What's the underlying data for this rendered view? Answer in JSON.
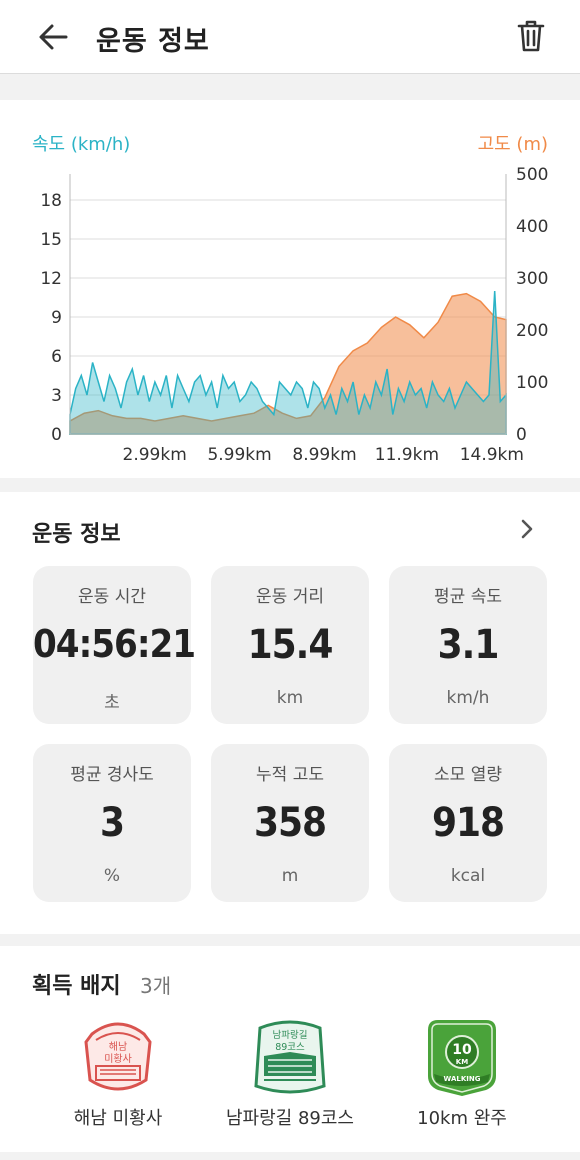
{
  "header": {
    "title": "운동 정보",
    "back_icon": "arrow-left-icon",
    "delete_icon": "trash-icon"
  },
  "chart": {
    "speed_axis_title": "속도 (km/h)",
    "elevation_axis_title": "고도 (m)",
    "colors": {
      "speed": "#2bb3c6",
      "elevation": "#f08a48"
    }
  },
  "chart_data": {
    "type": "area",
    "xlabel": "",
    "x_tick_labels": [
      "2.99km",
      "5.99km",
      "8.99km",
      "11.9km",
      "14.9km"
    ],
    "x_ticks_km": [
      2.99,
      5.99,
      8.99,
      11.9,
      14.9
    ],
    "x_range_km": [
      0,
      15.4
    ],
    "left_axis": {
      "label": "속도 (km/h)",
      "ticks": [
        0,
        3,
        6,
        9,
        12,
        15,
        18
      ],
      "range": [
        0,
        20
      ]
    },
    "right_axis": {
      "label": "고도 (m)",
      "ticks": [
        0,
        100,
        200,
        300,
        400,
        500
      ],
      "range": [
        0,
        500
      ]
    },
    "series": [
      {
        "name": "속도 (km/h)",
        "axis": "left",
        "x_km": [
          0,
          0.2,
          0.4,
          0.6,
          0.8,
          1.0,
          1.2,
          1.4,
          1.6,
          1.8,
          2.0,
          2.2,
          2.4,
          2.6,
          2.8,
          3.0,
          3.2,
          3.4,
          3.6,
          3.8,
          4.0,
          4.2,
          4.4,
          4.6,
          4.8,
          5.0,
          5.2,
          5.4,
          5.6,
          5.8,
          6.0,
          6.2,
          6.4,
          6.6,
          6.8,
          7.0,
          7.2,
          7.4,
          7.6,
          7.8,
          8.0,
          8.2,
          8.4,
          8.6,
          8.8,
          9.0,
          9.2,
          9.4,
          9.6,
          9.8,
          10.0,
          10.2,
          10.4,
          10.6,
          10.8,
          11.0,
          11.2,
          11.4,
          11.6,
          11.8,
          12.0,
          12.2,
          12.4,
          12.6,
          12.8,
          13.0,
          13.2,
          13.4,
          13.6,
          13.8,
          14.0,
          14.2,
          14.4,
          14.6,
          14.8,
          15.0,
          15.2,
          15.4
        ],
        "values": [
          1.5,
          3.5,
          4.5,
          3,
          5.5,
          4,
          2.5,
          4.5,
          3.5,
          2,
          4,
          5,
          3,
          4.5,
          2.5,
          4,
          3,
          4.5,
          2,
          4.5,
          3.5,
          2.5,
          4,
          4.5,
          3,
          4,
          2,
          4.5,
          3.5,
          4,
          2.5,
          3,
          4,
          3.5,
          2.5,
          2,
          1.5,
          4,
          3.5,
          3,
          4,
          3.5,
          2,
          4,
          3.5,
          2,
          3,
          1.5,
          3.5,
          2.5,
          4,
          1.5,
          3,
          2,
          4,
          3,
          5,
          1.5,
          3.5,
          2.5,
          4,
          3,
          3.5,
          2,
          4,
          3,
          2.5,
          3.5,
          2,
          3,
          4,
          3.5,
          3,
          2.5,
          3,
          11,
          2.5,
          3
        ]
      },
      {
        "name": "고도 (m)",
        "axis": "right",
        "x_km": [
          0,
          0.5,
          1,
          1.5,
          2,
          2.5,
          3,
          3.5,
          4,
          4.5,
          5,
          5.5,
          6,
          6.5,
          7,
          7.5,
          8,
          8.5,
          9,
          9.5,
          10,
          10.5,
          11,
          11.5,
          12,
          12.5,
          13,
          13.5,
          14,
          14.5,
          15,
          15.4
        ],
        "values": [
          25,
          40,
          45,
          35,
          30,
          30,
          25,
          30,
          35,
          30,
          25,
          30,
          35,
          40,
          55,
          40,
          30,
          35,
          70,
          130,
          160,
          175,
          205,
          225,
          210,
          185,
          215,
          265,
          270,
          255,
          225,
          220
        ]
      }
    ],
    "grid": true
  },
  "stats": {
    "section_title": "운동 정보",
    "more_icon": "chevron-right-icon",
    "tiles": [
      {
        "label": "운동 시간",
        "value": "04:56:21",
        "unit": "초"
      },
      {
        "label": "운동 거리",
        "value": "15.4",
        "unit": "km"
      },
      {
        "label": "평균 속도",
        "value": "3.1",
        "unit": "km/h"
      },
      {
        "label": "평균 경사도",
        "value": "3",
        "unit": "%"
      },
      {
        "label": "누적 고도",
        "value": "358",
        "unit": "m"
      },
      {
        "label": "소모 열량",
        "value": "918",
        "unit": "kcal"
      }
    ]
  },
  "badges": {
    "section_title": "획득 배지",
    "count": "3개",
    "items": [
      {
        "label": "해남 미황사",
        "icon": "temple-stamp-badge-icon",
        "color": "#d9534f",
        "art_text": [
          "해남",
          "미황사"
        ]
      },
      {
        "label": "남파랑길 89코스",
        "icon": "course-stamp-badge-icon",
        "color": "#2e8b57",
        "art_text": [
          "남파랑길",
          "89코스"
        ]
      },
      {
        "label": "10km 완주",
        "icon": "walking-10km-badge-icon",
        "color": "#4aa33a",
        "art_text": [
          "10",
          "KM",
          "WALKING"
        ]
      }
    ]
  }
}
